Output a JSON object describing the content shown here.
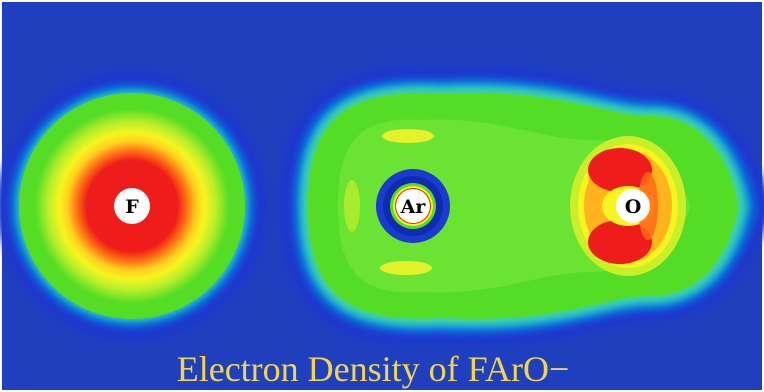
{
  "figure": {
    "caption": "Electron Density of FArO−",
    "atoms": [
      {
        "label": "F"
      },
      {
        "label": "Ar"
      },
      {
        "label": "O"
      }
    ]
  },
  "colors": {
    "background": "#1f3fbf",
    "contours": [
      "#1a35c8",
      "#0d5bd6",
      "#0f88e0",
      "#15c8c8",
      "#58e0a0",
      "#7de840",
      "#53dd22",
      "#c8ef2a",
      "#f7f51f",
      "#ffb41e",
      "#ff6b17",
      "#ee1c1a"
    ],
    "caption": "#f2d54a"
  }
}
